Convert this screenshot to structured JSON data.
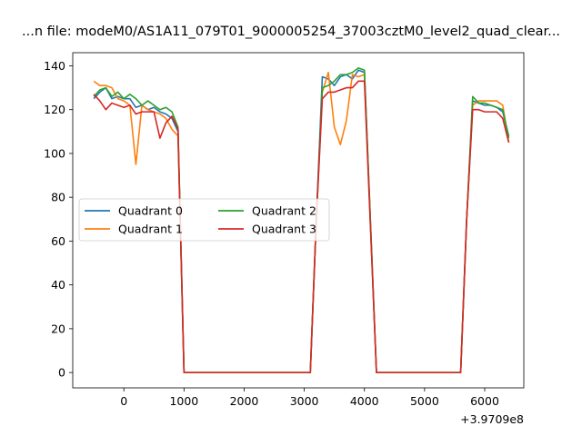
{
  "chart_data": {
    "type": "line",
    "title": "...n file: modeM0/AS1A11_079T01_9000005254_37003cztM0_level2_quad_clear...",
    "xlabel": "",
    "ylabel": "",
    "x_offset_label": "+3.9709e8",
    "xlim": [
      -850,
      6650
    ],
    "ylim": [
      -7,
      146
    ],
    "xticks": [
      0,
      1000,
      2000,
      3000,
      4000,
      5000,
      6000
    ],
    "xtick_labels": [
      "0",
      "1000",
      "2000",
      "3000",
      "4000",
      "5000",
      "6000"
    ],
    "yticks": [
      0,
      20,
      40,
      60,
      80,
      100,
      120,
      140
    ],
    "ytick_labels": [
      "0",
      "20",
      "40",
      "60",
      "80",
      "100",
      "120",
      "140"
    ],
    "grid": false,
    "legend": {
      "placement": "center-left",
      "columns": 2
    },
    "series": [
      {
        "name": "Quadrant 0",
        "color": "#1f77b4",
        "points": [
          [
            -500,
            125
          ],
          [
            -400,
            128
          ],
          [
            -300,
            130
          ],
          [
            -200,
            125
          ],
          [
            -100,
            126
          ],
          [
            0,
            125
          ],
          [
            100,
            125
          ],
          [
            200,
            121
          ],
          [
            300,
            122
          ],
          [
            400,
            120
          ],
          [
            500,
            121
          ],
          [
            600,
            119
          ],
          [
            700,
            118
          ],
          [
            800,
            116
          ],
          [
            900,
            110
          ],
          [
            1000,
            0
          ],
          [
            3100,
            0
          ],
          [
            3200,
            70
          ],
          [
            3300,
            135
          ],
          [
            3400,
            134
          ],
          [
            3500,
            131
          ],
          [
            3600,
            135
          ],
          [
            3700,
            136
          ],
          [
            3800,
            134
          ],
          [
            3900,
            138
          ],
          [
            4000,
            137
          ],
          [
            4200,
            0
          ],
          [
            5600,
            0
          ],
          [
            5700,
            70
          ],
          [
            5800,
            124
          ],
          [
            5900,
            123
          ],
          [
            6000,
            122
          ],
          [
            6100,
            122
          ],
          [
            6200,
            121
          ],
          [
            6300,
            119
          ],
          [
            6400,
            108
          ]
        ]
      },
      {
        "name": "Quadrant 1",
        "color": "#ff7f0e",
        "points": [
          [
            -500,
            133
          ],
          [
            -400,
            131
          ],
          [
            -300,
            131
          ],
          [
            -200,
            130
          ],
          [
            -100,
            125
          ],
          [
            0,
            124
          ],
          [
            100,
            122
          ],
          [
            200,
            95
          ],
          [
            300,
            122
          ],
          [
            400,
            120
          ],
          [
            500,
            119
          ],
          [
            600,
            118
          ],
          [
            700,
            116
          ],
          [
            800,
            111
          ],
          [
            900,
            108
          ],
          [
            1000,
            0
          ],
          [
            3100,
            0
          ],
          [
            3200,
            70
          ],
          [
            3300,
            128
          ],
          [
            3400,
            137
          ],
          [
            3500,
            112
          ],
          [
            3600,
            104
          ],
          [
            3700,
            115
          ],
          [
            3800,
            136
          ],
          [
            3900,
            135
          ],
          [
            4000,
            136
          ],
          [
            4200,
            0
          ],
          [
            5600,
            0
          ],
          [
            5700,
            70
          ],
          [
            5800,
            122
          ],
          [
            5900,
            124
          ],
          [
            6000,
            124
          ],
          [
            6100,
            124
          ],
          [
            6200,
            124
          ],
          [
            6300,
            122
          ],
          [
            6400,
            105
          ]
        ]
      },
      {
        "name": "Quadrant 2",
        "color": "#2ca02c",
        "points": [
          [
            -500,
            126
          ],
          [
            -400,
            129
          ],
          [
            -300,
            130
          ],
          [
            -200,
            126
          ],
          [
            -100,
            128
          ],
          [
            0,
            125
          ],
          [
            100,
            127
          ],
          [
            200,
            125
          ],
          [
            300,
            122
          ],
          [
            400,
            124
          ],
          [
            500,
            122
          ],
          [
            600,
            120
          ],
          [
            700,
            121
          ],
          [
            800,
            119
          ],
          [
            900,
            112
          ],
          [
            1000,
            0
          ],
          [
            3100,
            0
          ],
          [
            3200,
            70
          ],
          [
            3300,
            130
          ],
          [
            3400,
            131
          ],
          [
            3500,
            133
          ],
          [
            3600,
            136
          ],
          [
            3700,
            136
          ],
          [
            3800,
            137
          ],
          [
            3900,
            139
          ],
          [
            4000,
            138
          ],
          [
            4200,
            0
          ],
          [
            5600,
            0
          ],
          [
            5700,
            70
          ],
          [
            5800,
            126
          ],
          [
            5900,
            123
          ],
          [
            6000,
            123
          ],
          [
            6100,
            122
          ],
          [
            6200,
            121
          ],
          [
            6300,
            120
          ],
          [
            6400,
            107
          ]
        ]
      },
      {
        "name": "Quadrant 3",
        "color": "#d62728",
        "points": [
          [
            -500,
            127
          ],
          [
            -400,
            124
          ],
          [
            -300,
            120
          ],
          [
            -200,
            123
          ],
          [
            -100,
            122
          ],
          [
            0,
            121
          ],
          [
            100,
            122
          ],
          [
            200,
            118
          ],
          [
            300,
            119
          ],
          [
            400,
            119
          ],
          [
            500,
            119
          ],
          [
            600,
            107
          ],
          [
            700,
            114
          ],
          [
            800,
            117
          ],
          [
            900,
            111
          ],
          [
            1000,
            0
          ],
          [
            3100,
            0
          ],
          [
            3200,
            70
          ],
          [
            3300,
            125
          ],
          [
            3400,
            128
          ],
          [
            3500,
            128
          ],
          [
            3600,
            129
          ],
          [
            3700,
            130
          ],
          [
            3800,
            130
          ],
          [
            3900,
            133
          ],
          [
            4000,
            133
          ],
          [
            4200,
            0
          ],
          [
            5600,
            0
          ],
          [
            5700,
            70
          ],
          [
            5800,
            120
          ],
          [
            5900,
            120
          ],
          [
            6000,
            119
          ],
          [
            6100,
            119
          ],
          [
            6200,
            119
          ],
          [
            6300,
            116
          ],
          [
            6400,
            105
          ]
        ]
      }
    ]
  }
}
